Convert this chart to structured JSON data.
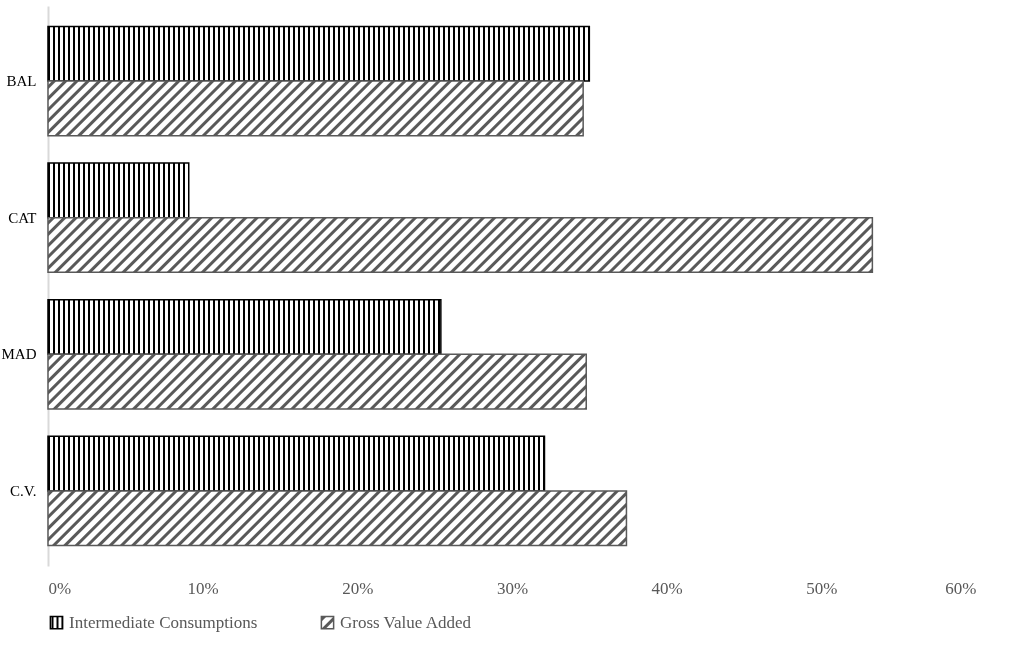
{
  "chart_data": {
    "type": "bar",
    "orientation": "horizontal",
    "categories": [
      "BAL",
      "CAT",
      "MAD",
      "C.V."
    ],
    "series": [
      {
        "name": "Intermediate Consumptions",
        "color": "#000000",
        "values": [
          35.0,
          9.1,
          25.4,
          32.1
        ]
      },
      {
        "name": "Gross Value Added",
        "color": "#595959",
        "values": [
          34.6,
          53.3,
          34.8,
          37.4
        ]
      }
    ],
    "xlim": [
      0,
      60
    ],
    "xticks": [
      {
        "value": 0,
        "label": "0%"
      },
      {
        "value": 10,
        "label": "10%"
      },
      {
        "value": 20,
        "label": "20%"
      },
      {
        "value": 30,
        "label": "30%"
      },
      {
        "value": 40,
        "label": "40%"
      },
      {
        "value": 50,
        "label": "50%"
      },
      {
        "value": 60,
        "label": "60%"
      }
    ],
    "grid": false,
    "legend": "bottom"
  }
}
